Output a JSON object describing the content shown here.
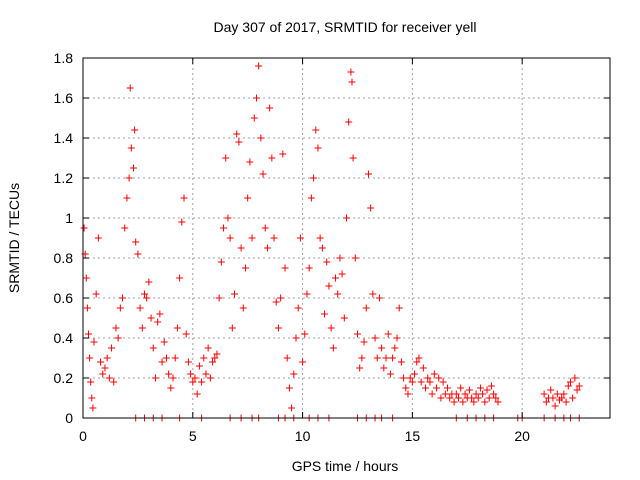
{
  "chart_data": {
    "type": "scatter",
    "title": "Day 307 of 2017, SRMTID for receiver yell",
    "xlabel": "GPS time / hours",
    "ylabel": "SRMTID / TECUs",
    "xlim": [
      0,
      24
    ],
    "ylim": [
      0,
      1.8
    ],
    "xticks": [
      "0",
      "5",
      "10",
      "15",
      "20"
    ],
    "yticks": [
      "0",
      "0.2",
      "0.4",
      "0.6",
      "0.8",
      "1",
      "1.2",
      "1.4",
      "1.6",
      "1.8"
    ],
    "grid": true,
    "marker": "+",
    "series": [
      {
        "name": "SRMTID",
        "color": "#ff0000",
        "points": [
          [
            0.05,
            0.95
          ],
          [
            0.1,
            0.82
          ],
          [
            0.15,
            0.7
          ],
          [
            0.2,
            0.55
          ],
          [
            0.25,
            0.42
          ],
          [
            0.3,
            0.3
          ],
          [
            0.35,
            0.18
          ],
          [
            0.4,
            0.1
          ],
          [
            0.45,
            0.05
          ],
          [
            0.5,
            0.38
          ],
          [
            0.6,
            0.62
          ],
          [
            0.7,
            0.9
          ],
          [
            0.8,
            0.28
          ],
          [
            0.9,
            0.22
          ],
          [
            1.0,
            0.25
          ],
          [
            1.1,
            0.3
          ],
          [
            1.2,
            0.2
          ],
          [
            1.3,
            0.35
          ],
          [
            1.4,
            0.18
          ],
          [
            1.5,
            0.45
          ],
          [
            1.6,
            0.4
          ],
          [
            1.7,
            0.55
          ],
          [
            1.8,
            0.6
          ],
          [
            1.9,
            0.95
          ],
          [
            2.0,
            1.1
          ],
          [
            2.1,
            1.2
          ],
          [
            2.15,
            1.65
          ],
          [
            2.2,
            1.35
          ],
          [
            2.3,
            1.25
          ],
          [
            2.35,
            1.44
          ],
          [
            2.4,
            0.88
          ],
          [
            2.5,
            0.82
          ],
          [
            2.6,
            0.55
          ],
          [
            2.7,
            0.45
          ],
          [
            2.8,
            0.62
          ],
          [
            2.9,
            0.6
          ],
          [
            3.0,
            0.68
          ],
          [
            3.1,
            0.5
          ],
          [
            3.2,
            0.35
          ],
          [
            3.3,
            0.2
          ],
          [
            3.4,
            0.48
          ],
          [
            3.5,
            0.52
          ],
          [
            3.6,
            0.28
          ],
          [
            3.7,
            0.38
          ],
          [
            3.8,
            0.3
          ],
          [
            3.9,
            0.22
          ],
          [
            4.0,
            0.15
          ],
          [
            4.1,
            0.2
          ],
          [
            4.2,
            0.3
          ],
          [
            4.3,
            0.45
          ],
          [
            4.4,
            0.7
          ],
          [
            4.5,
            0.98
          ],
          [
            4.6,
            1.1
          ],
          [
            4.7,
            0.42
          ],
          [
            4.8,
            0.28
          ],
          [
            4.9,
            0.22
          ],
          [
            5.0,
            0.18
          ],
          [
            5.1,
            0.2
          ],
          [
            5.2,
            0.12
          ],
          [
            5.3,
            0.26
          ],
          [
            5.4,
            0.18
          ],
          [
            5.5,
            0.3
          ],
          [
            5.6,
            0.22
          ],
          [
            5.7,
            0.35
          ],
          [
            5.8,
            0.2
          ],
          [
            5.9,
            0.28
          ],
          [
            6.0,
            0.3
          ],
          [
            6.1,
            0.32
          ],
          [
            6.2,
            0.6
          ],
          [
            6.3,
            0.78
          ],
          [
            6.4,
            0.95
          ],
          [
            6.5,
            1.3
          ],
          [
            6.6,
            1.0
          ],
          [
            6.7,
            0.9
          ],
          [
            6.8,
            0.45
          ],
          [
            6.9,
            0.62
          ],
          [
            7.0,
            1.42
          ],
          [
            7.1,
            1.38
          ],
          [
            7.2,
            0.85
          ],
          [
            7.3,
            0.55
          ],
          [
            7.4,
            0.75
          ],
          [
            7.5,
            1.1
          ],
          [
            7.6,
            1.28
          ],
          [
            7.7,
            0.9
          ],
          [
            7.8,
            1.5
          ],
          [
            7.9,
            1.6
          ],
          [
            8.0,
            1.76
          ],
          [
            8.1,
            1.4
          ],
          [
            8.2,
            1.22
          ],
          [
            8.3,
            0.95
          ],
          [
            8.4,
            0.85
          ],
          [
            8.5,
            1.55
          ],
          [
            8.6,
            1.3
          ],
          [
            8.7,
            0.9
          ],
          [
            8.8,
            0.58
          ],
          [
            8.9,
            0.45
          ],
          [
            9.0,
            0.6
          ],
          [
            9.1,
            1.32
          ],
          [
            9.2,
            0.75
          ],
          [
            9.3,
            0.3
          ],
          [
            9.4,
            0.15
          ],
          [
            9.5,
            0.05
          ],
          [
            9.6,
            0.22
          ],
          [
            9.7,
            0.4
          ],
          [
            9.8,
            0.55
          ],
          [
            9.9,
            0.9
          ],
          [
            10.0,
            0.28
          ],
          [
            10.1,
            0.42
          ],
          [
            10.2,
            0.62
          ],
          [
            10.3,
            0.75
          ],
          [
            10.4,
            1.1
          ],
          [
            10.5,
            1.2
          ],
          [
            10.6,
            1.44
          ],
          [
            10.7,
            1.35
          ],
          [
            10.8,
            0.9
          ],
          [
            10.9,
            0.85
          ],
          [
            11.0,
            0.52
          ],
          [
            11.1,
            0.78
          ],
          [
            11.2,
            0.66
          ],
          [
            11.3,
            0.45
          ],
          [
            11.4,
            0.35
          ],
          [
            11.5,
            0.7
          ],
          [
            11.6,
            0.62
          ],
          [
            11.7,
            0.8
          ],
          [
            11.8,
            0.72
          ],
          [
            11.9,
            0.5
          ],
          [
            12.0,
            1.0
          ],
          [
            12.1,
            1.48
          ],
          [
            12.2,
            1.73
          ],
          [
            12.25,
            1.68
          ],
          [
            12.3,
            1.3
          ],
          [
            12.4,
            0.8
          ],
          [
            12.5,
            0.42
          ],
          [
            12.6,
            0.25
          ],
          [
            12.7,
            0.3
          ],
          [
            12.8,
            0.38
          ],
          [
            12.9,
            0.55
          ],
          [
            13.0,
            1.22
          ],
          [
            13.1,
            1.05
          ],
          [
            13.2,
            0.62
          ],
          [
            13.3,
            0.4
          ],
          [
            13.4,
            0.3
          ],
          [
            13.5,
            0.6
          ],
          [
            13.6,
            0.35
          ],
          [
            13.7,
            0.25
          ],
          [
            13.8,
            0.3
          ],
          [
            13.9,
            0.42
          ],
          [
            14.0,
            0.22
          ],
          [
            14.1,
            0.3
          ],
          [
            14.2,
            0.35
          ],
          [
            14.3,
            0.4
          ],
          [
            14.4,
            0.55
          ],
          [
            14.5,
            0.28
          ],
          [
            14.6,
            0.2
          ],
          [
            14.7,
            0.15
          ],
          [
            14.8,
            0.12
          ],
          [
            14.9,
            0.2
          ],
          [
            15.0,
            0.18
          ],
          [
            15.1,
            0.22
          ],
          [
            15.2,
            0.28
          ],
          [
            15.3,
            0.3
          ],
          [
            15.4,
            0.18
          ],
          [
            15.5,
            0.25
          ],
          [
            15.6,
            0.15
          ],
          [
            15.7,
            0.2
          ],
          [
            15.8,
            0.18
          ],
          [
            15.9,
            0.12
          ],
          [
            16.0,
            0.22
          ],
          [
            16.1,
            0.15
          ],
          [
            16.2,
            0.2
          ],
          [
            16.3,
            0.1
          ],
          [
            16.4,
            0.18
          ],
          [
            16.5,
            0.12
          ],
          [
            16.6,
            0.15
          ],
          [
            16.7,
            0.1
          ],
          [
            16.8,
            0.12
          ],
          [
            16.9,
            0.08
          ],
          [
            17.0,
            0.12
          ],
          [
            17.1,
            0.1
          ],
          [
            17.2,
            0.15
          ],
          [
            17.3,
            0.08
          ],
          [
            17.4,
            0.12
          ],
          [
            17.5,
            0.1
          ],
          [
            17.6,
            0.14
          ],
          [
            17.7,
            0.1
          ],
          [
            17.8,
            0.08
          ],
          [
            17.9,
            0.12
          ],
          [
            18.0,
            0.1
          ],
          [
            18.1,
            0.15
          ],
          [
            18.2,
            0.12
          ],
          [
            18.3,
            0.08
          ],
          [
            18.4,
            0.14
          ],
          [
            18.5,
            0.1
          ],
          [
            18.6,
            0.16
          ],
          [
            18.7,
            0.12
          ],
          [
            18.8,
            0.1
          ],
          [
            18.9,
            0.08
          ],
          [
            21.0,
            0.12
          ],
          [
            21.1,
            0.08
          ],
          [
            21.2,
            0.1
          ],
          [
            21.3,
            0.14
          ],
          [
            21.4,
            0.1
          ],
          [
            21.5,
            0.06
          ],
          [
            21.6,
            0.12
          ],
          [
            21.7,
            0.09
          ],
          [
            21.8,
            0.1
          ],
          [
            21.9,
            0.12
          ],
          [
            22.0,
            0.08
          ],
          [
            22.1,
            0.16
          ],
          [
            22.2,
            0.18
          ],
          [
            22.3,
            0.1
          ],
          [
            22.4,
            0.2
          ],
          [
            22.5,
            0.14
          ],
          [
            22.6,
            0.16
          ],
          [
            2.4,
            0.0
          ],
          [
            2.8,
            0.0
          ],
          [
            3.2,
            0.0
          ],
          [
            3.6,
            0.0
          ],
          [
            4.4,
            0.0
          ],
          [
            5.4,
            0.0
          ],
          [
            6.7,
            0.0
          ],
          [
            7.2,
            0.0
          ],
          [
            7.7,
            0.0
          ],
          [
            8.0,
            0.0
          ],
          [
            8.9,
            0.0
          ],
          [
            9.2,
            0.0
          ],
          [
            9.6,
            0.0
          ],
          [
            10.3,
            0.0
          ],
          [
            10.7,
            0.0
          ],
          [
            11.2,
            0.0
          ],
          [
            12.5,
            0.0
          ],
          [
            12.9,
            0.0
          ],
          [
            13.3,
            0.0
          ],
          [
            13.6,
            0.0
          ],
          [
            14.1,
            0.0
          ],
          [
            17.0,
            0.0
          ],
          [
            17.5,
            0.0
          ],
          [
            17.9,
            0.0
          ],
          [
            18.3,
            0.0
          ],
          [
            18.7,
            0.0
          ],
          [
            19.8,
            0.0
          ],
          [
            20.0,
            0.0
          ],
          [
            21.0,
            0.0
          ],
          [
            21.5,
            0.0
          ],
          [
            21.9,
            0.0
          ],
          [
            22.2,
            0.0
          ],
          [
            22.6,
            0.0
          ]
        ]
      }
    ]
  }
}
